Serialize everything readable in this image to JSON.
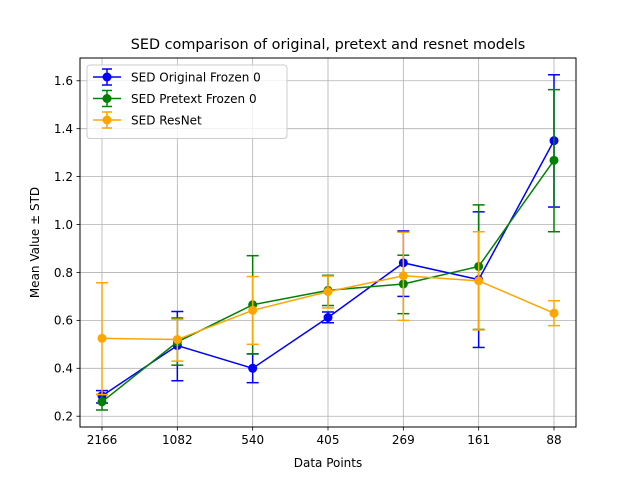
{
  "chart_data": {
    "type": "line",
    "title": "SED comparison of original, pretext and resnet models",
    "xlabel": "Data Points",
    "ylabel": "Mean Value ± STD",
    "categories": [
      "2166",
      "1082",
      "540",
      "405",
      "269",
      "161",
      "88"
    ],
    "ylim": [
      0.155,
      1.695
    ],
    "yticks": [
      0.2,
      0.4,
      0.6,
      0.8,
      1.0,
      1.2,
      1.4,
      1.6
    ],
    "ytick_labels": [
      "0.2",
      "0.4",
      "0.6",
      "0.8",
      "1.0",
      "1.2",
      "1.4",
      "1.6"
    ],
    "grid": true,
    "legend_position": "top-left",
    "series": [
      {
        "name": "SED Original Frozen 0",
        "color": "#0000ff",
        "values": [
          0.285,
          0.495,
          0.4,
          0.612,
          0.84,
          0.77,
          1.35
        ],
        "err_lower": [
          0.255,
          0.348,
          0.34,
          0.59,
          0.7,
          0.487,
          1.073
        ],
        "err_upper": [
          0.307,
          0.637,
          0.46,
          0.635,
          0.973,
          1.053,
          1.625
        ]
      },
      {
        "name": "SED Pretext Frozen 0",
        "color": "#008000",
        "values": [
          0.26,
          0.51,
          0.665,
          0.725,
          0.752,
          0.825,
          1.268
        ],
        "err_lower": [
          0.226,
          0.413,
          0.46,
          0.662,
          0.628,
          0.562,
          0.97
        ],
        "err_upper": [
          0.291,
          0.61,
          0.87,
          0.788,
          0.872,
          1.082,
          1.563
        ]
      },
      {
        "name": "SED ResNet",
        "color": "#ffa500",
        "values": [
          0.525,
          0.52,
          0.642,
          0.72,
          0.786,
          0.765,
          0.63
        ],
        "err_lower": [
          0.29,
          0.43,
          0.5,
          0.652,
          0.6,
          0.56,
          0.578
        ],
        "err_upper": [
          0.757,
          0.605,
          0.783,
          0.785,
          0.968,
          0.97,
          0.682
        ]
      }
    ]
  }
}
